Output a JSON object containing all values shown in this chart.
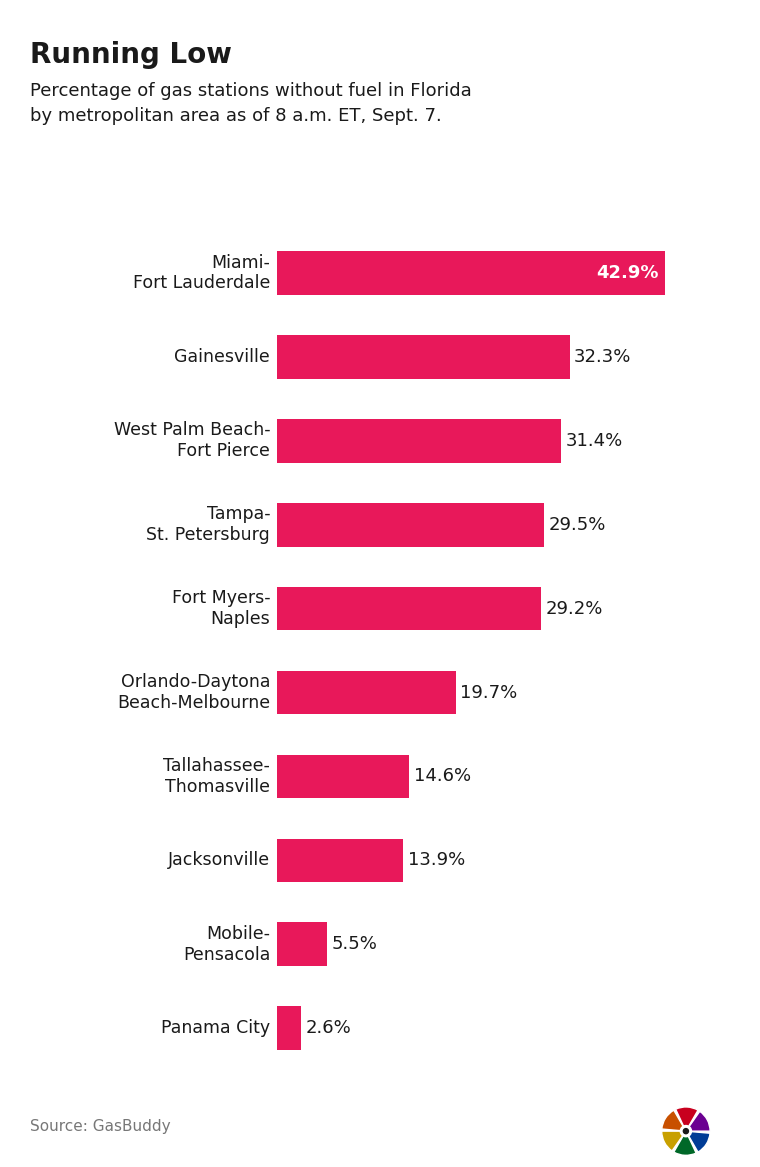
{
  "title": "Running Low",
  "subtitle": "Percentage of gas stations without fuel in Florida\nby metropolitan area as of 8 a.m. ET, Sept. 7.",
  "source": "Source: GasBuddy",
  "categories": [
    "Miami-\nFort Lauderdale",
    "Gainesville",
    "West Palm Beach-\nFort Pierce",
    "Tampa-\nSt. Petersburg",
    "Fort Myers-\nNaples",
    "Orlando-Daytona\nBeach-Melbourne",
    "Tallahassee-\nThomasville",
    "Jacksonville",
    "Mobile-\nPensacola",
    "Panama City"
  ],
  "values": [
    42.9,
    32.3,
    31.4,
    29.5,
    29.2,
    19.7,
    14.6,
    13.9,
    5.5,
    2.6
  ],
  "bar_color": "#E8185A",
  "background_color": "#ffffff",
  "label_color_inside": "#ffffff",
  "label_color_outside": "#1a1a1a",
  "title_fontsize": 20,
  "subtitle_fontsize": 13,
  "category_fontsize": 12.5,
  "value_fontsize": 13,
  "source_fontsize": 11,
  "xlim": [
    0,
    50
  ],
  "inside_label_threshold": 42.0
}
